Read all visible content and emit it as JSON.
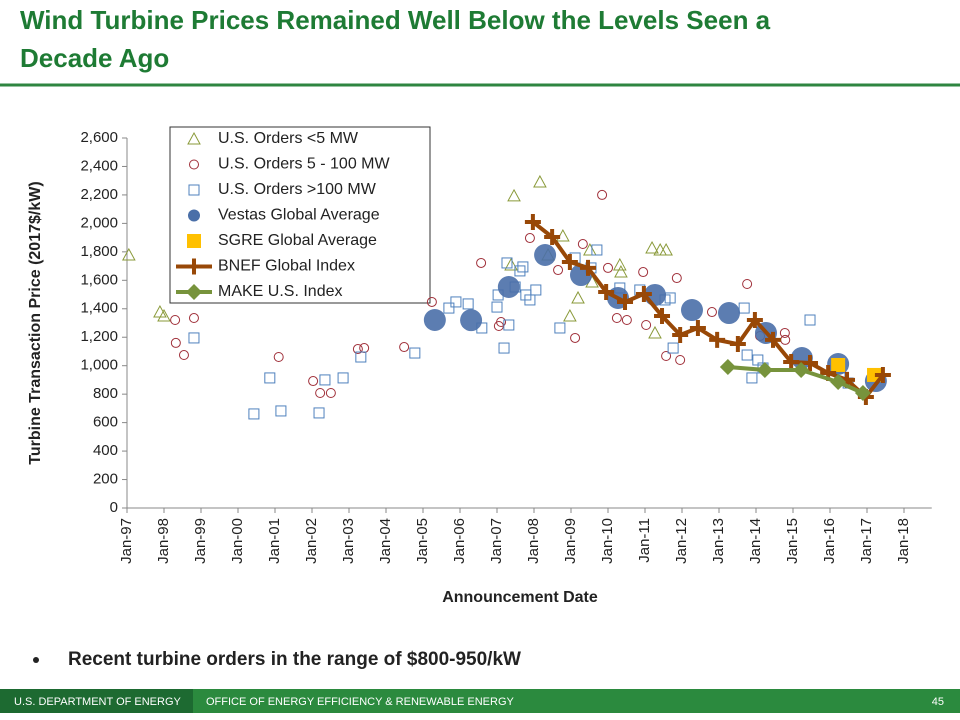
{
  "title": "Wind Turbine Prices Remained Well Below the Levels Seen a Decade Ago",
  "chart_data": {
    "type": "scatter",
    "x_label": "Announcement Date",
    "y_label": "Turbine Transaction Price (2017$/kW)",
    "xlim": [
      1997,
      2018.75
    ],
    "xticks": [
      {
        "value": 1997,
        "label": "Jan-97"
      },
      {
        "value": 1998,
        "label": "Jan-98"
      },
      {
        "value": 1999,
        "label": "Jan-99"
      },
      {
        "value": 2000,
        "label": "Jan-00"
      },
      {
        "value": 2001,
        "label": "Jan-01"
      },
      {
        "value": 2002,
        "label": "Jan-02"
      },
      {
        "value": 2003,
        "label": "Jan-03"
      },
      {
        "value": 2004,
        "label": "Jan-04"
      },
      {
        "value": 2005,
        "label": "Jan-05"
      },
      {
        "value": 2006,
        "label": "Jan-06"
      },
      {
        "value": 2007,
        "label": "Jan-07"
      },
      {
        "value": 2008,
        "label": "Jan-08"
      },
      {
        "value": 2009,
        "label": "Jan-09"
      },
      {
        "value": 2010,
        "label": "Jan-10"
      },
      {
        "value": 2011,
        "label": "Jan-11"
      },
      {
        "value": 2012,
        "label": "Jan-12"
      },
      {
        "value": 2013,
        "label": "Jan-13"
      },
      {
        "value": 2014,
        "label": "Jan-14"
      },
      {
        "value": 2015,
        "label": "Jan-15"
      },
      {
        "value": 2016,
        "label": "Jan-16"
      },
      {
        "value": 2017,
        "label": "Jan-17"
      },
      {
        "value": 2018,
        "label": "Jan-18"
      }
    ],
    "ylim": [
      0,
      2600
    ],
    "yticks": [
      0,
      200,
      400,
      600,
      800,
      {
        "value": 1000,
        "label": "1,000"
      },
      {
        "value": 1200,
        "label": "1,200"
      },
      {
        "value": 1400,
        "label": "1,400"
      },
      {
        "value": 1600,
        "label": "1,600"
      },
      {
        "value": 1800,
        "label": "1,800"
      },
      {
        "value": 2000,
        "label": "2,000"
      },
      {
        "value": 2200,
        "label": "2,200"
      },
      {
        "value": 2400,
        "label": "2,400"
      },
      {
        "value": 2600,
        "label": "2,600"
      }
    ],
    "grid": false,
    "legend": "upper left",
    "series": [
      {
        "name": "U.S. Orders <5 MW",
        "color": "#8a9a3a",
        "marker": "triangle-open",
        "line": false,
        "x": [
          1997.05,
          1997.89,
          1998.0,
          2007.38,
          2007.46,
          2008.16,
          2008.38,
          2008.78,
          2008.97,
          2009.19,
          2009.51,
          2009.57,
          2010.32,
          2010.35,
          2011.19,
          2011.27,
          2011.41,
          2011.57
        ],
        "values": [
          1778,
          1377,
          1349,
          1708,
          2193,
          2291,
          1778,
          1911,
          1349,
          1476,
          1813,
          1588,
          1708,
          1658,
          1827,
          1230,
          1813,
          1813
        ]
      },
      {
        "name": "U.S. Orders 5 - 100 MW",
        "color": "#a0303a",
        "marker": "circle-open",
        "line": false,
        "x": [
          1998.3,
          1998.32,
          1998.54,
          1998.81,
          2001.1,
          2002.03,
          2002.22,
          2002.51,
          2003.24,
          2003.41,
          2004.49,
          2005.24,
          2006.57,
          2007.05,
          2007.11,
          2007.89,
          2008.65,
          2009.11,
          2009.32,
          2009.84,
          2010.0,
          2010.24,
          2010.51,
          2010.95,
          2011.03,
          2011.57,
          2011.86,
          2011.95,
          2012.81,
          2013.76,
          2014.11,
          2014.78,
          2014.79
        ],
        "values": [
          1321,
          1160,
          1075,
          1335,
          1061,
          892,
          808,
          808,
          1117,
          1124,
          1131,
          1448,
          1722,
          1279,
          1307,
          1897,
          1672,
          1195,
          1855,
          2200,
          1687,
          1335,
          1321,
          1658,
          1286,
          1068,
          1616,
          1040,
          1377,
          1574,
          1209,
          1230,
          1181
        ]
      },
      {
        "name": "U.S. Orders >100 MW",
        "color": "#4f81bd",
        "marker": "square-open",
        "line": false,
        "x": [
          1998.81,
          2000.43,
          2000.86,
          2001.16,
          2002.19,
          2002.35,
          2002.84,
          2003.32,
          2004.78,
          2005.7,
          2005.89,
          2006.22,
          2006.59,
          2007.0,
          2007.03,
          2007.19,
          2007.27,
          2007.32,
          2007.49,
          2007.62,
          2007.7,
          2007.78,
          2007.89,
          2008.05,
          2008.7,
          2009.11,
          2009.54,
          2009.7,
          2010.32,
          2010.86,
          2011.54,
          2011.68,
          2011.76,
          2013.68,
          2013.76,
          2013.89,
          2014.05,
          2014.19,
          2015.46,
          2016.27,
          2016.49
        ],
        "values": [
          1195,
          661,
          914,
          682,
          668,
          900,
          914,
          1061,
          1089,
          1405,
          1448,
          1434,
          1265,
          1412,
          1497,
          1124,
          1722,
          1286,
          1553,
          1666,
          1694,
          1497,
          1462,
          1532,
          1265,
          1757,
          1687,
          1813,
          1546,
          1532,
          1462,
          1476,
          1124,
          1405,
          1075,
          914,
          1040,
          984,
          1321,
          914,
          878
        ]
      },
      {
        "name": "Vestas Global Average",
        "color": "#4a6fa8",
        "marker": "circle",
        "line": false,
        "x": [
          2005.32,
          2006.3,
          2007.32,
          2008.3,
          2009.27,
          2010.27,
          2011.27,
          2012.27,
          2013.27,
          2014.27,
          2015.24,
          2016.22,
          2017.24
        ],
        "values": [
          1321,
          1320,
          1553,
          1778,
          1637,
          1476,
          1497,
          1391,
          1370,
          1230,
          1054,
          1012,
          892
        ]
      },
      {
        "name": "SGRE Global Average",
        "color": "#ffc000",
        "marker": "square",
        "line": false,
        "x": [
          2016.22,
          2017.19
        ],
        "values": [
          1005,
          935
        ]
      },
      {
        "name": "BNEF Global Index",
        "color": "#984807",
        "marker": "plus",
        "line": true,
        "x": [
          2007.97,
          2008.49,
          2008.97,
          2009.46,
          2009.95,
          2010.46,
          2010.97,
          2011.46,
          2011.95,
          2012.43,
          2012.95,
          2013.51,
          2013.97,
          2014.46,
          2014.95,
          2015.46,
          2015.95,
          2016.46,
          2016.97,
          2017.43
        ],
        "values": [
          2010,
          1904,
          1729,
          1687,
          1518,
          1448,
          1504,
          1349,
          1216,
          1265,
          1181,
          1152,
          1321,
          1181,
          1026,
          1019,
          949,
          900,
          780,
          935
        ]
      },
      {
        "name": "MAKE U.S. Index",
        "color": "#77933c",
        "marker": "diamond",
        "line": true,
        "x": [
          2013.24,
          2014.24,
          2015.22,
          2016.22,
          2016.89
        ],
        "values": [
          991,
          970,
          970,
          885,
          808
        ]
      }
    ]
  },
  "bullets": [
    "Recent turbine orders in the range of $800-950/kW"
  ],
  "footer": {
    "left": "U.S. DEPARTMENT OF ENERGY",
    "right": "OFFICE OF ENERGY EFFICIENCY & RENEWABLE ENERGY",
    "page": "45"
  }
}
